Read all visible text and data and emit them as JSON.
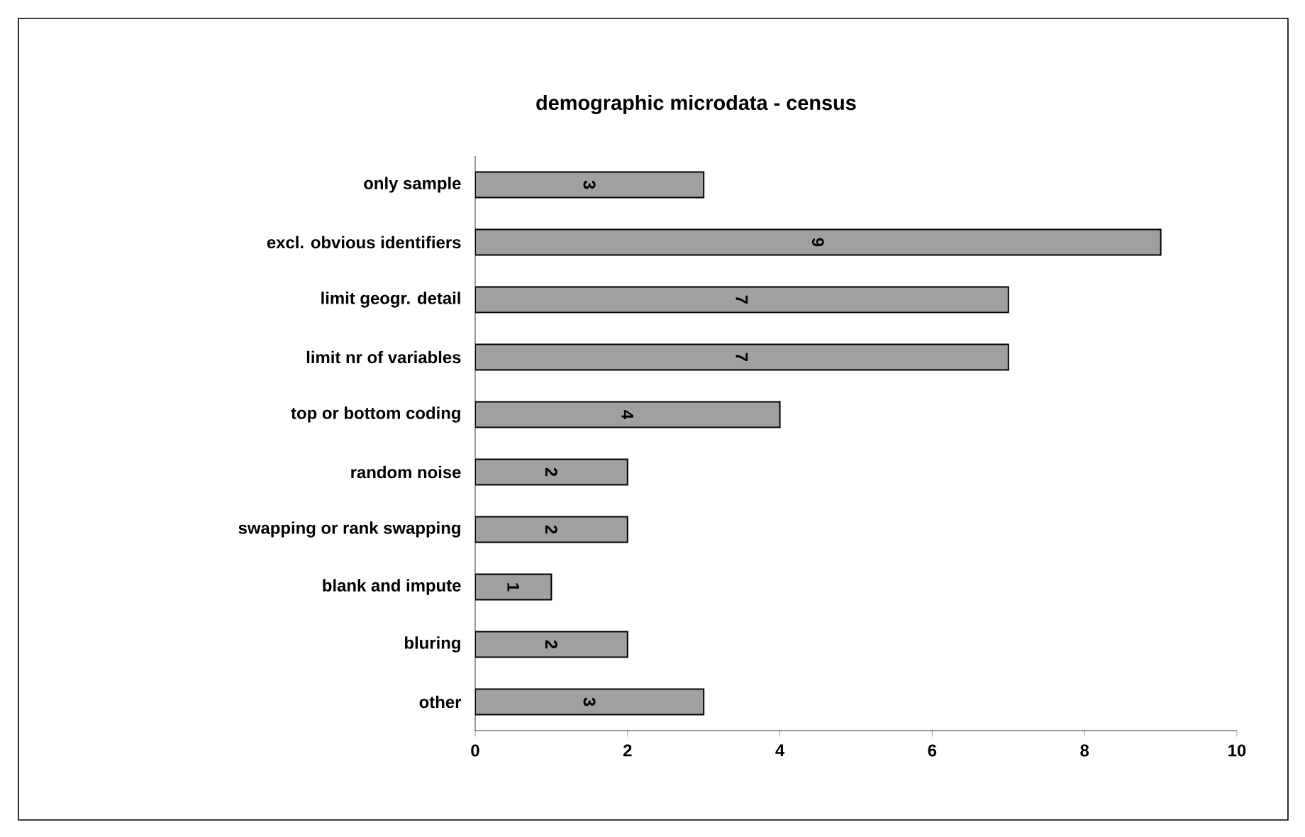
{
  "chart_data": {
    "type": "bar",
    "orientation": "horizontal",
    "title": "demographic microdata - census",
    "categories": [
      "only sample",
      "excl. obvious identifiers",
      "limit geogr. detail",
      "limit nr of variables",
      "top or bottom coding",
      "random noise",
      "swapping or rank swapping",
      "blank and impute",
      "bluring",
      "other"
    ],
    "values": [
      3,
      9,
      7,
      7,
      4,
      2,
      2,
      1,
      2,
      3
    ],
    "color": "#a0a0a0",
    "xlim": [
      0,
      10
    ],
    "xticks": [
      0,
      2,
      4,
      6,
      8,
      10
    ],
    "data_labels": true,
    "grid": false
  }
}
